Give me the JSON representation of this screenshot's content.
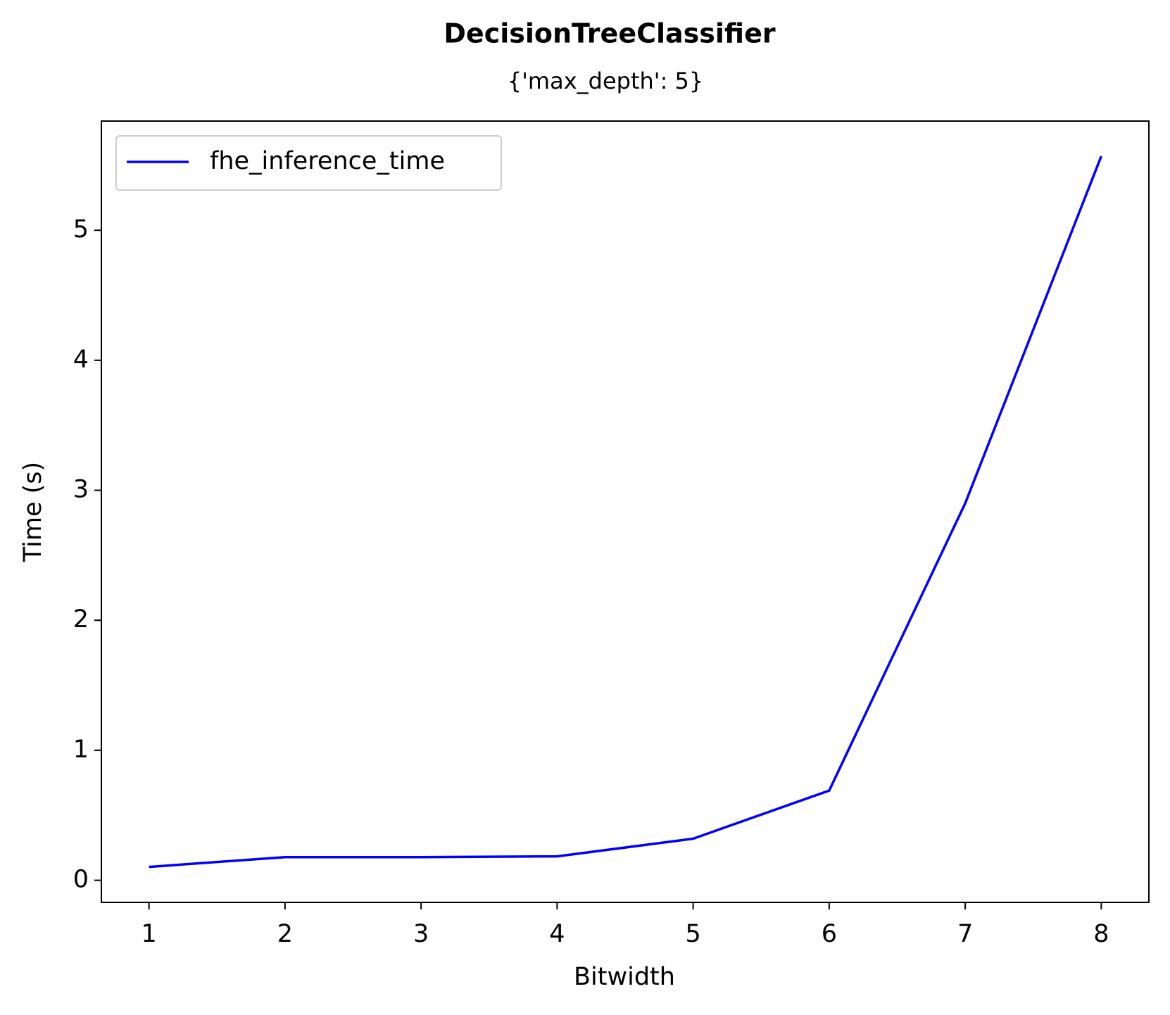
{
  "chart_data": {
    "type": "line",
    "title": "DecisionTreeClassifier",
    "subtitle": "{'max_depth': 5}",
    "x_label": "Bitwidth",
    "y_label": "Time (s)",
    "x": [
      1,
      2,
      3,
      4,
      5,
      6,
      7,
      8
    ],
    "series": [
      {
        "name": "fhe_inference_time",
        "color": "#0000ff",
        "values": [
          0.103,
          0.178,
          0.178,
          0.184,
          0.32,
          0.69,
          2.9,
          5.57
        ]
      }
    ],
    "xlim": [
      0.65,
      8.35
    ],
    "xticks": [
      1,
      2,
      3,
      4,
      5,
      6,
      7,
      8
    ],
    "ylim": [
      -0.17,
      5.84
    ],
    "yticks": [
      0,
      1,
      2,
      3,
      4,
      5
    ],
    "legend": "upper left"
  }
}
